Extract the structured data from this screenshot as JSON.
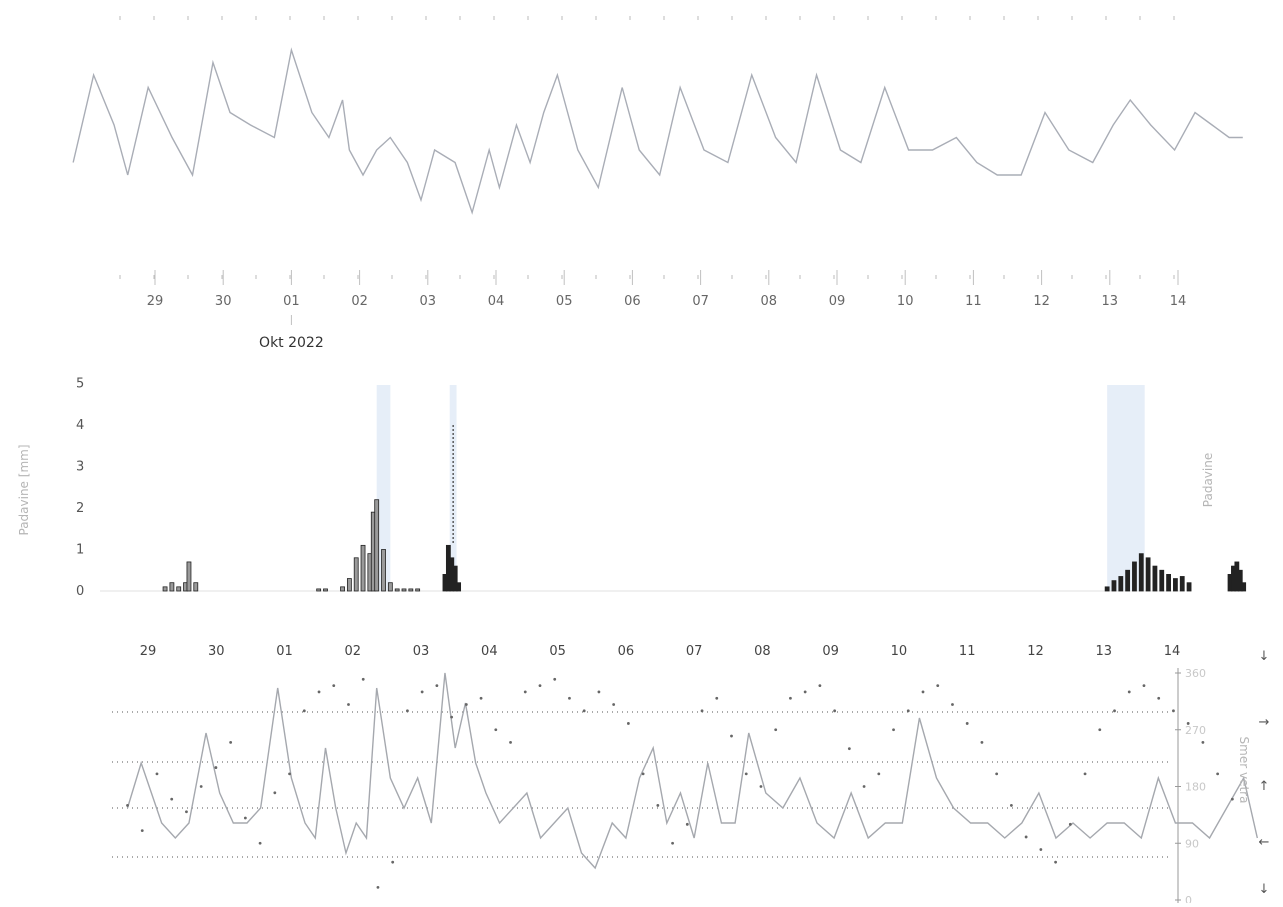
{
  "colors": {
    "temperature_line": "#a9adb6",
    "precip_bar": "#222222",
    "precip_bar_fill": "#9a9a9a",
    "precip_shade": "#e6eef8",
    "wind_speed_line": "#a5a8ae",
    "wind_dir_dots": "#666666",
    "grid_dots": "#555555",
    "axis_faint": "#c8c8c8"
  },
  "day_labels": [
    "29",
    "30",
    "01",
    "02",
    "03",
    "04",
    "05",
    "06",
    "07",
    "08",
    "09",
    "10",
    "11",
    "12",
    "13",
    "14"
  ],
  "month_label": "Okt 2022",
  "panel_precip": {
    "ylabel": "Padavine [mm]",
    "right_label": "Padavine",
    "ytick_labels": [
      "5",
      "4",
      "3",
      "2",
      "1",
      "0"
    ]
  },
  "panel_wind": {
    "ylabel_right": "Smer vetra",
    "right_tick_labels": [
      "360",
      "270",
      "180",
      "90",
      "0"
    ],
    "arrows": [
      "↓",
      "→",
      "↑",
      "←",
      "↓"
    ]
  },
  "chart_data": [
    {
      "type": "line",
      "panel": "temperature",
      "x_unit": "day index from 29 Sep 2022 (0 = 29)",
      "x": [
        -1.2,
        -0.9,
        -0.6,
        -0.4,
        -0.1,
        0.25,
        0.55,
        0.85,
        1.1,
        1.4,
        1.75,
        2.0,
        2.3,
        2.55,
        2.75,
        2.85,
        3.05,
        3.25,
        3.45,
        3.7,
        3.9,
        4.1,
        4.4,
        4.65,
        4.9,
        5.05,
        5.3,
        5.5,
        5.7,
        5.9,
        6.2,
        6.5,
        6.85,
        7.1,
        7.4,
        7.7,
        8.05,
        8.4,
        8.75,
        9.1,
        9.4,
        9.7,
        10.05,
        10.35,
        10.7,
        11.05,
        11.4,
        11.75,
        12.05,
        12.35,
        12.7,
        13.05,
        13.4,
        13.75,
        14.05,
        14.3,
        14.6,
        14.95,
        15.25,
        15.5,
        15.75,
        15.95
      ],
      "y": [
        5,
        12,
        8,
        4,
        11,
        7,
        4,
        13,
        9,
        8,
        7,
        14,
        9,
        7,
        10,
        6,
        4,
        6,
        7,
        5,
        2,
        6,
        5,
        1,
        6,
        3,
        8,
        5,
        9,
        12,
        6,
        3,
        11,
        6,
        4,
        11,
        6,
        5,
        12,
        7,
        5,
        12,
        6,
        5,
        11,
        6,
        6,
        7,
        5,
        4,
        4,
        9,
        6,
        5,
        8,
        10,
        8,
        6,
        9,
        8,
        7,
        7
      ]
    },
    {
      "type": "bar",
      "panel": "precipitation",
      "title": "",
      "ylabel": "Padavine [mm]",
      "ylim": [
        0,
        5
      ],
      "x_unit": "day index from 29 Sep 2022 (0 = 29)",
      "x": [
        0.25,
        0.35,
        0.45,
        0.55,
        0.6,
        0.7,
        2.5,
        2.6,
        2.85,
        2.95,
        3.05,
        3.15,
        3.25,
        3.3,
        3.35,
        3.45,
        3.55,
        3.65,
        3.75,
        3.85,
        3.95,
        4.35,
        4.4,
        4.45,
        4.5,
        4.55,
        14.05,
        14.15,
        14.25,
        14.35,
        14.45,
        14.55,
        14.65,
        14.75,
        14.85,
        14.95,
        15.05,
        15.15,
        15.25,
        15.85,
        15.9,
        15.95,
        16.0,
        16.05
      ],
      "values": [
        0.1,
        0.2,
        0.1,
        0.2,
        0.7,
        0.2,
        0.05,
        0.05,
        0.1,
        0.3,
        0.8,
        1.1,
        0.9,
        1.9,
        2.2,
        1.0,
        0.2,
        0.05,
        0.05,
        0.05,
        0.05,
        0.4,
        1.1,
        0.8,
        0.6,
        0.2,
        0.1,
        0.25,
        0.35,
        0.5,
        0.7,
        0.9,
        0.8,
        0.6,
        0.5,
        0.4,
        0.3,
        0.35,
        0.2,
        0.4,
        0.6,
        0.7,
        0.5,
        0.2
      ],
      "shaded_day_ranges": [
        [
          3.35,
          3.55
        ],
        [
          4.42,
          4.52
        ],
        [
          14.05,
          14.6
        ]
      ]
    },
    {
      "type": "line",
      "panel": "wind",
      "x_unit": "day index from 29 Sep 2022 (0 = 29)",
      "series": [
        {
          "x": [
            -0.3,
            -0.1,
            0.05,
            0.2,
            0.4,
            0.6,
            0.85,
            1.05,
            1.25,
            1.45,
            1.65,
            1.9,
            2.1,
            2.3,
            2.45,
            2.6,
            2.75,
            2.9,
            3.05,
            3.2,
            3.35,
            3.55,
            3.75,
            3.95,
            4.15,
            4.35,
            4.5,
            4.65,
            4.8,
            4.95,
            5.15,
            5.35,
            5.55,
            5.75,
            5.95,
            6.15,
            6.35,
            6.55,
            6.8,
            7.0,
            7.2,
            7.4,
            7.6,
            7.8,
            8.0,
            8.2,
            8.4,
            8.6,
            8.8,
            9.05,
            9.3,
            9.55,
            9.8,
            10.05,
            10.3,
            10.55,
            10.8,
            11.05,
            11.3,
            11.55,
            11.8,
            12.05,
            12.3,
            12.55,
            12.8,
            13.05,
            13.3,
            13.55,
            13.8,
            14.05,
            14.3,
            14.55,
            14.8,
            15.05,
            15.3,
            15.55,
            15.8,
            16.05,
            16.25
          ],
          "y": [
            4,
            7,
            5,
            3,
            2,
            3,
            9,
            5,
            3,
            3,
            4,
            12,
            6,
            3,
            2,
            8,
            4,
            1,
            3,
            2,
            12,
            6,
            4,
            6,
            3,
            13,
            8,
            11,
            7,
            5,
            3,
            4,
            5,
            2,
            3,
            4,
            1,
            0,
            3,
            2,
            6,
            8,
            3,
            5,
            2,
            7,
            3,
            3,
            9,
            5,
            4,
            6,
            3,
            2,
            5,
            2,
            3,
            3,
            10,
            6,
            4,
            3,
            3,
            2,
            3,
            5,
            2,
            3,
            2,
            3,
            3,
            2,
            6,
            3,
            3,
            2,
            4,
            6,
            2
          ]
        }
      ],
      "wind_direction_deg": [
        150,
        110,
        200,
        160,
        140,
        180,
        210,
        250,
        130,
        90,
        170,
        200,
        300,
        330,
        340,
        310,
        350,
        20,
        60,
        300,
        330,
        340,
        290,
        310,
        320,
        270,
        250,
        330,
        340,
        350,
        320,
        300,
        330,
        310,
        280,
        200,
        150,
        90,
        120,
        300,
        320,
        260,
        200,
        180,
        270,
        320,
        330,
        340,
        300,
        240,
        180,
        200,
        270,
        300,
        330,
        340,
        310,
        280,
        250,
        200,
        150,
        100,
        80,
        60,
        120,
        200,
        270,
        300,
        330,
        340,
        320,
        300,
        280,
        250,
        200,
        160
      ]
    }
  ]
}
